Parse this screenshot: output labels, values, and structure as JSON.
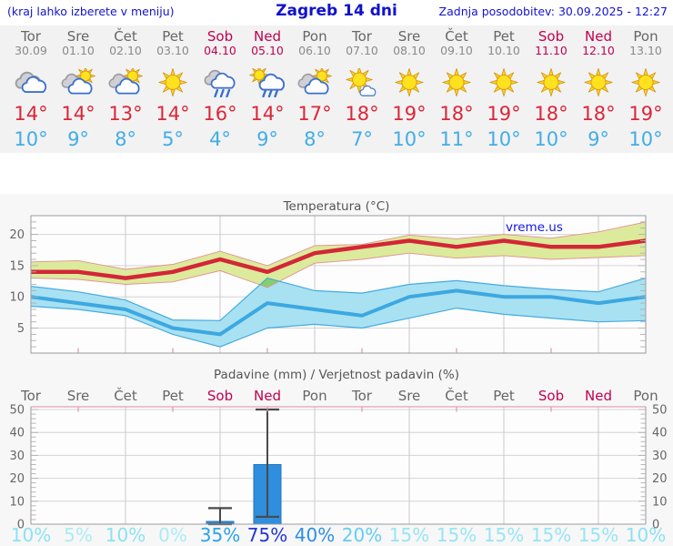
{
  "header": {
    "hint": "(kraj lahko izberete v meniju)",
    "title": "Zagreb 14 dni",
    "updated": "Zadnja posodobitev: 30.09.2025 - 12:27"
  },
  "colors": {
    "header_blue": "#1414cc",
    "weekend": "#c2004f",
    "high_temp": "#dc2636",
    "low_temp": "#42ade6",
    "panel_bg": "#f2f2f3",
    "charts_bg": "#f7f7f7"
  },
  "forecast": {
    "days": [
      {
        "name": "Tor",
        "date": "30.09",
        "weekend": false,
        "icon": "cloudy",
        "high": "14°",
        "low": "10°",
        "prob": "10%",
        "prob_color": "#8ce1f2"
      },
      {
        "name": "Sre",
        "date": "01.10",
        "weekend": false,
        "icon": "partly-cloudy",
        "high": "14°",
        "low": "9°",
        "prob": "5%",
        "prob_color": "#abebf6"
      },
      {
        "name": "Čet",
        "date": "02.10",
        "weekend": false,
        "icon": "partly-cloudy",
        "high": "13°",
        "low": "8°",
        "prob": "10%",
        "prob_color": "#8ce1f2"
      },
      {
        "name": "Pet",
        "date": "03.10",
        "weekend": false,
        "icon": "sunny",
        "high": "14°",
        "low": "5°",
        "prob": "0%",
        "prob_color": "#abebf6"
      },
      {
        "name": "Sob",
        "date": "04.10",
        "weekend": true,
        "icon": "rain",
        "high": "16°",
        "low": "4°",
        "prob": "35%",
        "prob_color": "#2aa3ea"
      },
      {
        "name": "Ned",
        "date": "05.10",
        "weekend": true,
        "icon": "sun-rain",
        "high": "14°",
        "low": "9°",
        "prob": "75%",
        "prob_color": "#2136d4"
      },
      {
        "name": "Pon",
        "date": "06.10",
        "weekend": false,
        "icon": "partly-cloudy",
        "high": "17°",
        "low": "8°",
        "prob": "40%",
        "prob_color": "#2d8ee8"
      },
      {
        "name": "Tor",
        "date": "07.10",
        "weekend": false,
        "icon": "mostly-sunny",
        "high": "18°",
        "low": "7°",
        "prob": "20%",
        "prob_color": "#62cef2"
      },
      {
        "name": "Sre",
        "date": "08.10",
        "weekend": false,
        "icon": "sunny",
        "high": "19°",
        "low": "10°",
        "prob": "15%",
        "prob_color": "#97e5f3"
      },
      {
        "name": "Čet",
        "date": "09.10",
        "weekend": false,
        "icon": "sunny",
        "high": "18°",
        "low": "11°",
        "prob": "15%",
        "prob_color": "#97e5f3"
      },
      {
        "name": "Pet",
        "date": "10.10",
        "weekend": false,
        "icon": "sunny",
        "high": "19°",
        "low": "10°",
        "prob": "15%",
        "prob_color": "#97e5f3"
      },
      {
        "name": "Sob",
        "date": "11.10",
        "weekend": true,
        "icon": "sunny",
        "high": "18°",
        "low": "10°",
        "prob": "15%",
        "prob_color": "#97e5f3"
      },
      {
        "name": "Ned",
        "date": "12.10",
        "weekend": true,
        "icon": "sunny",
        "high": "18°",
        "low": "9°",
        "prob": "15%",
        "prob_color": "#97e5f3"
      },
      {
        "name": "Pon",
        "date": "13.10",
        "weekend": false,
        "icon": "sunny",
        "high": "19°",
        "low": "10°",
        "prob": "10%",
        "prob_color": "#8ce1f2"
      }
    ]
  },
  "chart_data": [
    {
      "type": "area",
      "title": "Temperatura (°C)",
      "watermark": "vreme.us",
      "categories": [
        "Tor",
        "Sre",
        "Čet",
        "Pet",
        "Sob",
        "Ned",
        "Pon",
        "Tor",
        "Sre",
        "Čet",
        "Pet",
        "Sob",
        "Ned",
        "Pon"
      ],
      "ylim": [
        1,
        23
      ],
      "yticks": [
        5,
        10,
        15,
        20
      ],
      "grid": true,
      "legend": "none",
      "series": [
        {
          "name": "T max",
          "color": "#d32637",
          "band_fill": "#dcea9b",
          "band_edge": "#e59090",
          "values": [
            14,
            14,
            13,
            14,
            16,
            14,
            17,
            18,
            19,
            18,
            19,
            18,
            18,
            19
          ],
          "upper": [
            15.6,
            15.8,
            14.4,
            15.2,
            17.3,
            15,
            18.2,
            18.4,
            19.9,
            19.3,
            20,
            19.4,
            20.4,
            22
          ],
          "lower": [
            13,
            12.8,
            12,
            12.4,
            14.2,
            11.5,
            15.4,
            16,
            17,
            16.2,
            16.6,
            16,
            16.3,
            16.6
          ]
        },
        {
          "name": "T min",
          "color": "#3da8e0",
          "band_fill": "#a8e1f2",
          "band_edge": "#45abdf",
          "values": [
            10,
            9,
            8,
            5,
            4,
            9,
            8,
            7,
            10,
            11,
            10,
            10,
            9,
            10
          ],
          "upper": [
            11.7,
            10.8,
            9.5,
            6.3,
            6.2,
            13,
            11,
            10.6,
            12,
            12.6,
            11.8,
            11.2,
            10.8,
            13
          ],
          "lower": [
            8.5,
            8,
            7,
            4,
            2,
            5,
            5.6,
            5,
            6.6,
            8.2,
            7.2,
            6.6,
            6,
            6.2
          ]
        }
      ],
      "overlap_fill": "#83cf6d",
      "overlap_polygon": [
        [
          4.84,
          11.9
        ],
        [
          5,
          13
        ],
        [
          5.25,
          12.5
        ],
        [
          5,
          11.5
        ]
      ]
    },
    {
      "type": "bar",
      "title": "Padavine (mm) / Verjetnost padavin (%)",
      "categories": [
        "Tor",
        "Sre",
        "Čet",
        "Pet",
        "Sob",
        "Ned",
        "Pon",
        "Tor",
        "Sre",
        "Čet",
        "Pet",
        "Sob",
        "Ned",
        "Pon"
      ],
      "ylim": [
        0,
        51.2
      ],
      "yticks": [
        0,
        10,
        20,
        30,
        40,
        50
      ],
      "grid": true,
      "bar_color": "#2f8edd",
      "whisker_color": "#4a4a4a",
      "values": [
        0,
        0,
        0,
        0,
        1.2,
        26,
        0,
        0,
        0,
        0,
        0,
        0,
        0,
        0
      ],
      "whiskers": {
        "4": {
          "low": 0,
          "high": 7
        },
        "5": {
          "low": 3.2,
          "high": 50
        }
      },
      "probabilities": [
        10,
        5,
        10,
        0,
        35,
        75,
        40,
        20,
        15,
        15,
        15,
        15,
        15,
        10
      ]
    }
  ]
}
